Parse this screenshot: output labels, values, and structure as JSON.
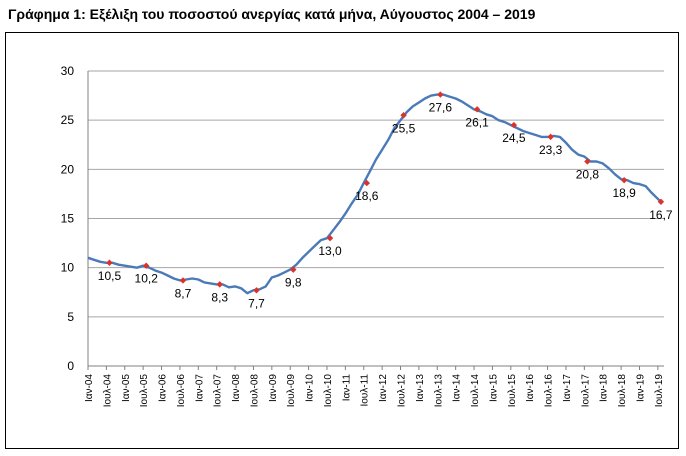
{
  "chart_data": {
    "type": "line",
    "title": "Γράφημα 1: Εξέλιξη του ποσοστού ανεργίας κατά μήνα, Αύγουστος 2004 – 2019",
    "xlabel": "",
    "ylabel": "",
    "ylim": [
      0,
      30
    ],
    "yticks": [
      "0",
      "5",
      "10",
      "15",
      "20",
      "25",
      "30"
    ],
    "grid": true,
    "x_tick_labels": [
      "Ιαν-04",
      "Ιουλ-04",
      "Ιαν-05",
      "Ιουλ-05",
      "Ιαν-06",
      "Ιουλ-06",
      "Ιαν-07",
      "Ιουλ-07",
      "Ιαν-08",
      "Ιουλ-08",
      "Ιαν-09",
      "Ιουλ-09",
      "Ιαν-10",
      "Ιουλ-10",
      "Ιαν-11",
      "Ιουλ-11",
      "Ιαν-12",
      "Ιουλ-12",
      "Ιαν-13",
      "Ιουλ-13",
      "Ιαν-14",
      "Ιουλ-14",
      "Ιαν-15",
      "Ιουλ-15",
      "Ιαν-16",
      "Ιουλ-16",
      "Ιαν-17",
      "Ιουλ-17",
      "Ιαν-18",
      "Ιουλ-18",
      "Ιαν-19",
      "Ιουλ-19"
    ],
    "series": [
      {
        "color": "#4a7ab8",
        "x": [
          "2004-01",
          "2004-03",
          "2004-05",
          "2004-07",
          "2004-09",
          "2004-11",
          "2005-01",
          "2005-03",
          "2005-05",
          "2005-07",
          "2005-09",
          "2005-11",
          "2006-01",
          "2006-03",
          "2006-05",
          "2006-07",
          "2006-09",
          "2006-11",
          "2007-01",
          "2007-03",
          "2007-05",
          "2007-07",
          "2007-09",
          "2007-11",
          "2008-01",
          "2008-03",
          "2008-05",
          "2008-07",
          "2008-09",
          "2008-11",
          "2009-01",
          "2009-03",
          "2009-05",
          "2009-07",
          "2009-09",
          "2009-11",
          "2010-01",
          "2010-03",
          "2010-05",
          "2010-07",
          "2010-09",
          "2010-11",
          "2011-01",
          "2011-03",
          "2011-05",
          "2011-07",
          "2011-09",
          "2011-11",
          "2012-01",
          "2012-03",
          "2012-05",
          "2012-07",
          "2012-09",
          "2012-11",
          "2013-01",
          "2013-03",
          "2013-05",
          "2013-07",
          "2013-09",
          "2013-11",
          "2014-01",
          "2014-03",
          "2014-05",
          "2014-07",
          "2014-09",
          "2014-11",
          "2015-01",
          "2015-03",
          "2015-05",
          "2015-07",
          "2015-09",
          "2015-11",
          "2016-01",
          "2016-03",
          "2016-05",
          "2016-07",
          "2016-09",
          "2016-11",
          "2017-01",
          "2017-03",
          "2017-05",
          "2017-07",
          "2017-09",
          "2017-11",
          "2018-01",
          "2018-03",
          "2018-05",
          "2018-07",
          "2018-09",
          "2018-11",
          "2019-01",
          "2019-03",
          "2019-05",
          "2019-08"
        ],
        "values": [
          11.0,
          10.8,
          10.6,
          10.5,
          10.5,
          10.3,
          10.2,
          10.1,
          10.0,
          10.2,
          10.0,
          9.7,
          9.5,
          9.2,
          8.9,
          8.7,
          8.8,
          8.9,
          8.8,
          8.5,
          8.4,
          8.3,
          8.3,
          8.0,
          8.1,
          7.9,
          7.4,
          7.7,
          7.8,
          8.1,
          9.0,
          9.2,
          9.5,
          9.8,
          10.3,
          11.0,
          11.6,
          12.2,
          12.8,
          13.0,
          13.8,
          14.6,
          15.5,
          16.5,
          17.4,
          18.6,
          19.8,
          21.0,
          22.0,
          23.0,
          24.2,
          25.0,
          25.8,
          26.4,
          26.8,
          27.2,
          27.5,
          27.6,
          27.6,
          27.4,
          27.2,
          26.9,
          26.5,
          26.1,
          25.9,
          25.6,
          25.4,
          25.0,
          24.8,
          24.5,
          24.2,
          23.9,
          23.7,
          23.5,
          23.3,
          23.3,
          23.4,
          23.3,
          22.7,
          22.0,
          21.5,
          21.3,
          20.8,
          20.8,
          20.6,
          20.1,
          19.5,
          19.0,
          18.9,
          18.6,
          18.5,
          18.3,
          17.6,
          16.7
        ]
      }
    ],
    "labeled_points": [
      {
        "x": "2004-08",
        "value": 10.5,
        "label": "10,5"
      },
      {
        "x": "2005-08",
        "value": 10.2,
        "label": "10,2"
      },
      {
        "x": "2006-08",
        "value": 8.7,
        "label": "8,7"
      },
      {
        "x": "2007-08",
        "value": 8.3,
        "label": "8,3"
      },
      {
        "x": "2008-08",
        "value": 7.7,
        "label": "7,7"
      },
      {
        "x": "2009-08",
        "value": 9.8,
        "label": "9,8"
      },
      {
        "x": "2010-08",
        "value": 13.0,
        "label": "13,0"
      },
      {
        "x": "2011-08",
        "value": 18.6,
        "label": "18,6"
      },
      {
        "x": "2012-08",
        "value": 25.5,
        "label": "25,5"
      },
      {
        "x": "2013-08",
        "value": 27.6,
        "label": "27,6"
      },
      {
        "x": "2014-08",
        "value": 26.1,
        "label": "26,1"
      },
      {
        "x": "2015-08",
        "value": 24.5,
        "label": "24,5"
      },
      {
        "x": "2016-08",
        "value": 23.3,
        "label": "23,3"
      },
      {
        "x": "2017-08",
        "value": 20.8,
        "label": "20,8"
      },
      {
        "x": "2018-08",
        "value": 18.9,
        "label": "18,9"
      },
      {
        "x": "2019-08",
        "value": 16.7,
        "label": "16,7"
      }
    ],
    "marker_color": "#d9342b"
  }
}
